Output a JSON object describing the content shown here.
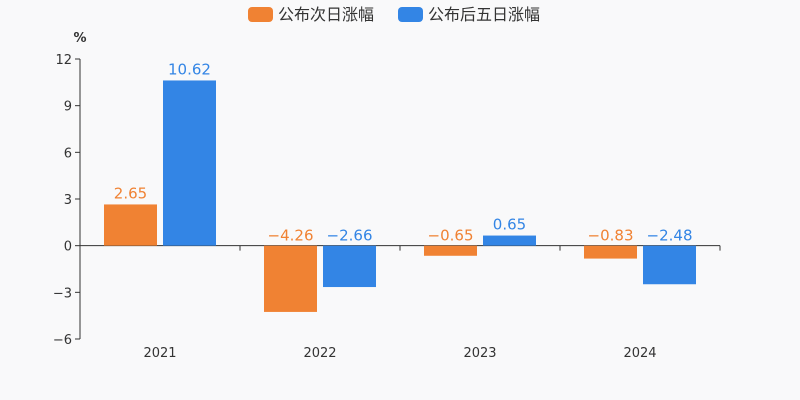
{
  "chart_data": {
    "type": "bar",
    "unit": "%",
    "categories": [
      "2021",
      "2022",
      "2023",
      "2024"
    ],
    "series": [
      {
        "name": "公布次日涨幅",
        "color": "#f08233",
        "values": [
          2.65,
          -4.26,
          -0.65,
          -0.83
        ]
      },
      {
        "name": "公布后五日涨幅",
        "color": "#3385e5",
        "values": [
          10.62,
          -2.66,
          0.65,
          -2.48
        ]
      }
    ],
    "ylim": [
      -6,
      12
    ],
    "yticks": [
      -6,
      -3,
      0,
      3,
      6,
      9,
      12
    ],
    "ytick_labels": [
      "−6",
      "−3",
      "0",
      "3",
      "6",
      "9",
      "12"
    ],
    "value_labels": [
      [
        "2.65",
        "−4.26",
        "−0.65",
        "−0.83"
      ],
      [
        "10.62",
        "−2.66",
        "0.65",
        "−2.48"
      ]
    ],
    "legend_position": "top-center",
    "grid": false
  }
}
